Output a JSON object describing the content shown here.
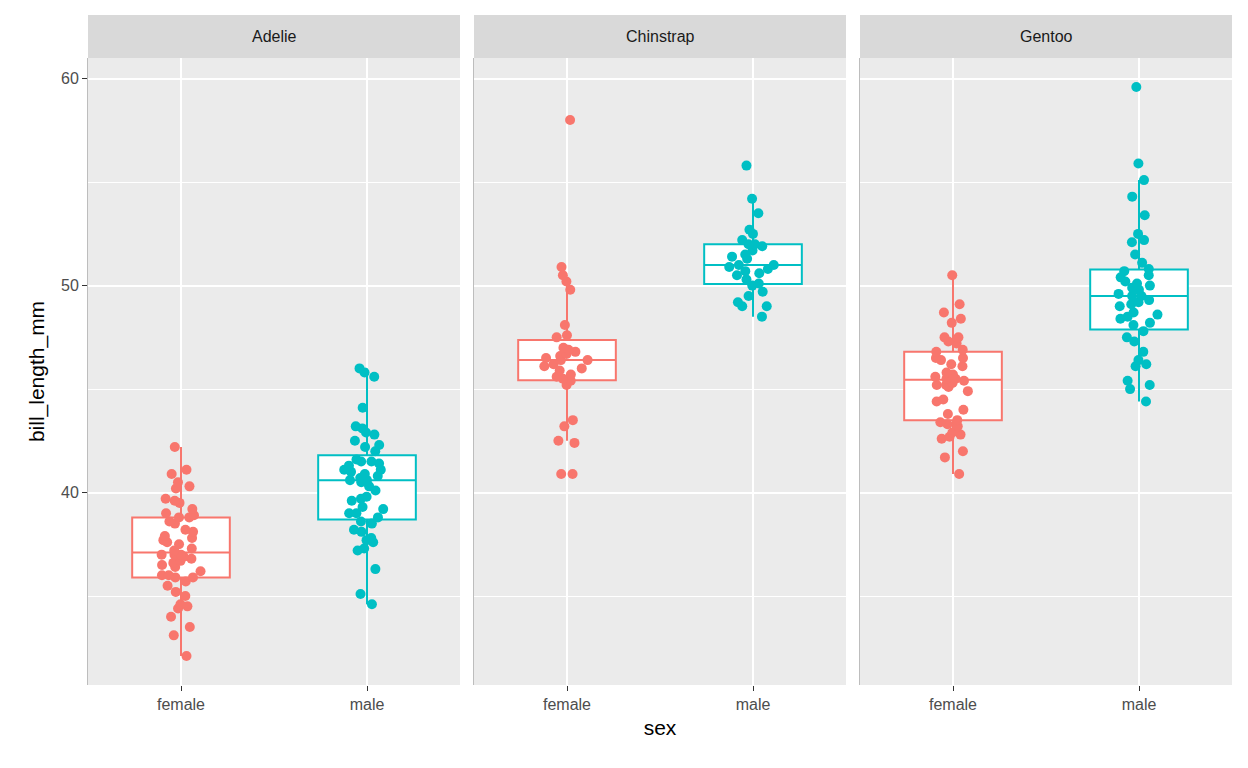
{
  "chart_data": {
    "type": "box",
    "xlabel": "sex",
    "ylabel": "bill_length_mm",
    "ylim": [
      30.7,
      61.0
    ],
    "yticks": [
      40,
      50,
      60
    ],
    "grid": true,
    "marker": "circle",
    "panels": [
      {
        "title": "Adelie",
        "categories": [
          "female",
          "male"
        ],
        "series": [
          {
            "name": "female",
            "color": "#F8766D",
            "values": [
              32.1,
              33.1,
              33.5,
              34.0,
              34.4,
              34.5,
              34.6,
              35.0,
              35.2,
              35.5,
              35.7,
              35.9,
              35.9,
              36.0,
              36.0,
              36.2,
              36.4,
              36.5,
              36.6,
              36.7,
              36.8,
              36.9,
              37.0,
              37.0,
              37.0,
              37.2,
              37.3,
              37.5,
              37.6,
              37.7,
              37.8,
              37.9,
              38.1,
              38.2,
              38.5,
              38.6,
              38.8,
              38.8,
              38.9,
              39.0,
              39.2,
              39.5,
              39.6,
              39.7,
              40.2,
              40.3,
              40.5,
              40.9,
              41.1,
              42.2
            ]
          },
          {
            "name": "male",
            "color": "#00BFC4",
            "values": [
              34.6,
              35.1,
              36.3,
              37.2,
              37.3,
              37.6,
              37.7,
              37.8,
              38.1,
              38.2,
              38.5,
              38.6,
              38.8,
              39.0,
              39.0,
              39.2,
              39.3,
              39.6,
              39.7,
              39.8,
              40.1,
              40.3,
              40.5,
              40.6,
              40.6,
              40.7,
              40.8,
              40.9,
              41.0,
              41.1,
              41.1,
              41.3,
              41.4,
              41.5,
              41.5,
              41.6,
              42.0,
              42.2,
              42.3,
              42.5,
              42.8,
              42.9,
              43.1,
              43.2,
              44.1,
              45.6,
              45.8,
              46.0
            ]
          }
        ]
      },
      {
        "title": "Chinstrap",
        "categories": [
          "female",
          "male"
        ],
        "series": [
          {
            "name": "female",
            "color": "#F8766D",
            "values": [
              40.9,
              40.9,
              42.4,
              42.5,
              43.2,
              43.5,
              45.2,
              45.4,
              45.5,
              45.6,
              45.7,
              45.9,
              46.0,
              46.1,
              46.2,
              46.4,
              46.4,
              46.5,
              46.6,
              46.7,
              46.8,
              46.9,
              47.0,
              47.5,
              47.6,
              48.1,
              49.8,
              50.2,
              50.5,
              50.9,
              58.0
            ]
          },
          {
            "name": "male",
            "color": "#00BFC4",
            "values": [
              48.5,
              49.0,
              49.0,
              49.2,
              49.5,
              49.7,
              50.0,
              50.1,
              50.3,
              50.5,
              50.6,
              50.7,
              50.8,
              50.9,
              51.0,
              51.0,
              51.3,
              51.4,
              51.5,
              51.7,
              51.9,
              52.0,
              52.0,
              52.2,
              52.5,
              52.7,
              53.5,
              54.2,
              55.8
            ]
          }
        ]
      },
      {
        "title": "Gentoo",
        "categories": [
          "female",
          "male"
        ],
        "series": [
          {
            "name": "female",
            "color": "#F8766D",
            "values": [
              40.9,
              41.7,
              42.0,
              42.6,
              42.7,
              42.8,
              42.9,
              43.2,
              43.3,
              43.4,
              43.5,
              43.8,
              44.0,
              44.4,
              44.5,
              44.9,
              45.1,
              45.2,
              45.2,
              45.3,
              45.4,
              45.5,
              45.5,
              45.6,
              45.7,
              45.8,
              46.1,
              46.2,
              46.4,
              46.5,
              46.5,
              46.8,
              46.9,
              47.2,
              47.3,
              47.5,
              47.5,
              48.2,
              48.4,
              48.7,
              49.1,
              50.5
            ]
          },
          {
            "name": "male",
            "color": "#00BFC4",
            "values": [
              44.4,
              45.0,
              45.2,
              45.4,
              46.1,
              46.2,
              46.4,
              46.8,
              47.3,
              47.5,
              47.8,
              48.1,
              48.2,
              48.4,
              48.5,
              48.6,
              48.7,
              49.0,
              49.1,
              49.2,
              49.3,
              49.5,
              49.5,
              49.6,
              49.8,
              49.9,
              50.0,
              50.1,
              50.2,
              50.4,
              50.5,
              50.7,
              50.8,
              51.1,
              51.5,
              52.1,
              52.2,
              52.5,
              53.4,
              54.3,
              55.1,
              55.9,
              59.6
            ]
          }
        ]
      }
    ]
  }
}
